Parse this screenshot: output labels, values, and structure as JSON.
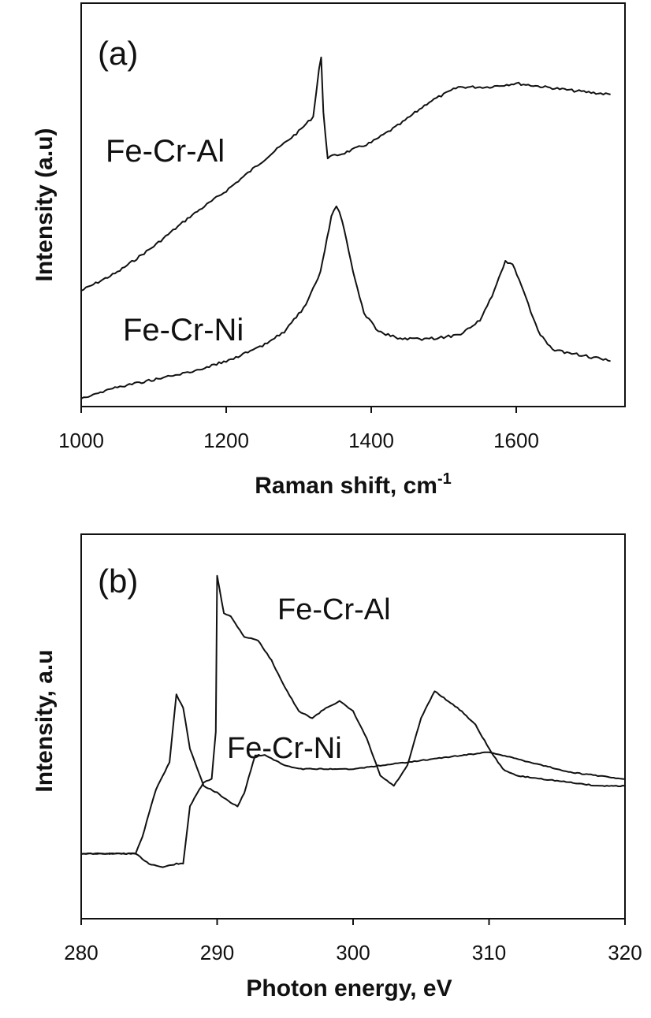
{
  "chart_data": [
    {
      "type": "line",
      "panel_label": "(a)",
      "xlabel": "Raman shift, cm",
      "xlabel_sup": "-1",
      "ylabel": "Intensity (a.u)",
      "xlim": [
        1000,
        1750
      ],
      "ylim": [
        0,
        100
      ],
      "xticks": [
        1000,
        1200,
        1400,
        1600
      ],
      "xtick_labels": [
        "1000",
        "1200",
        "1400",
        "1600"
      ],
      "y_ticks_shown": false,
      "grid": false,
      "series": [
        {
          "name": "Fe-Cr-Al",
          "x": [
            1000,
            1050,
            1100,
            1150,
            1200,
            1250,
            1300,
            1320,
            1328,
            1331,
            1334,
            1340,
            1360,
            1400,
            1440,
            1480,
            1520,
            1560,
            1600,
            1640,
            1680,
            1730
          ],
          "y": [
            30,
            35,
            42,
            50,
            57,
            65,
            73,
            77,
            90,
            93,
            78,
            66,
            67,
            70,
            75,
            81,
            85,
            85,
            86,
            85,
            84,
            83
          ]
        },
        {
          "name": "Fe-Cr-Ni",
          "x": [
            1000,
            1050,
            1100,
            1150,
            1200,
            1250,
            1280,
            1310,
            1330,
            1345,
            1352,
            1360,
            1375,
            1390,
            1410,
            1440,
            1480,
            1520,
            1550,
            1570,
            1585,
            1595,
            1610,
            1630,
            1650,
            1680,
            1730
          ],
          "y": [
            1,
            4,
            6,
            8,
            11,
            15,
            19,
            26,
            35,
            50,
            53,
            49,
            35,
            24,
            19,
            17,
            17,
            18,
            22,
            30,
            38,
            37,
            30,
            19,
            14,
            13,
            11
          ]
        }
      ]
    },
    {
      "type": "line",
      "panel_label": "(b)",
      "xlabel": "Photon energy, eV",
      "ylabel": "Intensity, a.u",
      "xlim": [
        280,
        320
      ],
      "ylim": [
        0,
        100
      ],
      "xticks": [
        280,
        290,
        300,
        310,
        320
      ],
      "xtick_labels": [
        "280",
        "290",
        "300",
        "310",
        "320"
      ],
      "y_ticks_shown": false,
      "grid": false,
      "series": [
        {
          "name": "Fe-Cr-Al",
          "x": [
            280,
            284,
            285,
            286,
            287,
            287.5,
            288,
            289,
            289.6,
            289.9,
            290,
            290.5,
            291,
            292,
            293,
            294,
            295,
            296,
            297,
            298,
            299,
            300,
            301,
            302,
            303,
            304,
            305,
            306,
            307,
            308,
            309,
            310,
            311,
            312,
            314,
            316,
            318,
            320
          ],
          "y": [
            12,
            12,
            9,
            8,
            9,
            9,
            26,
            33,
            34,
            48,
            94,
            83,
            82,
            76,
            75,
            69,
            61,
            54,
            52,
            55,
            57,
            54,
            46,
            35,
            32,
            38,
            52,
            60,
            57,
            54,
            50,
            43,
            37,
            35,
            34,
            33,
            32,
            32
          ]
        },
        {
          "name": "Fe-Cr-Ni",
          "x": [
            280,
            284,
            284.5,
            285.5,
            286.5,
            287,
            287.5,
            288,
            289,
            290,
            291,
            291.5,
            292,
            292.8,
            293.5,
            294,
            295,
            296,
            298,
            300,
            302,
            304,
            306,
            308,
            310,
            312,
            314,
            316,
            318,
            320
          ],
          "y": [
            12,
            12,
            17,
            31,
            39,
            59,
            55,
            43,
            32,
            30,
            27,
            26,
            30,
            41,
            41,
            40,
            38,
            37,
            37,
            37,
            38,
            39,
            40,
            41,
            42,
            40,
            38,
            36,
            35,
            34
          ]
        }
      ]
    }
  ]
}
